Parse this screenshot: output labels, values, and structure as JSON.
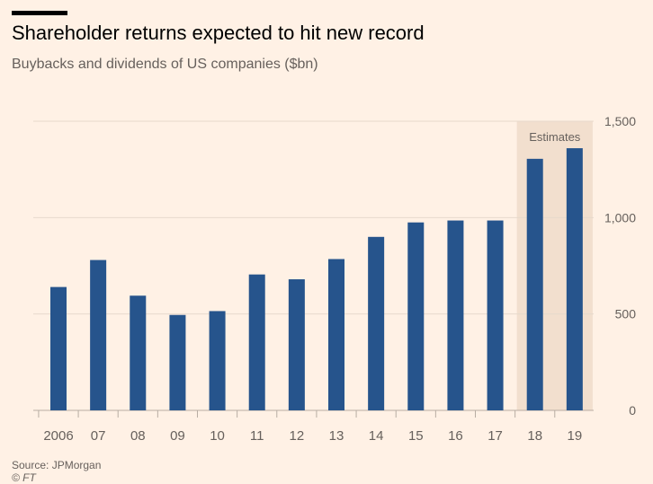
{
  "title": "Shareholder returns expected to hit new record",
  "subtitle": "Buybacks and dividends of US companies ($bn)",
  "source": "Source: JPMorgan",
  "credit": "© FT",
  "chart_data": {
    "type": "bar",
    "categories": [
      "2006",
      "07",
      "08",
      "09",
      "10",
      "11",
      "12",
      "13",
      "14",
      "15",
      "16",
      "17",
      "18",
      "19"
    ],
    "values": [
      640,
      780,
      595,
      495,
      515,
      705,
      680,
      785,
      900,
      975,
      985,
      985,
      1305,
      1360
    ],
    "estimate_categories": [
      "18",
      "19"
    ],
    "annotation": "Estimates",
    "ylim": [
      0,
      1500
    ],
    "yticks": [
      0,
      500,
      1000,
      1500
    ],
    "ytick_labels": [
      "0",
      "500",
      "1,000",
      "1,500"
    ],
    "grid": true,
    "bar_color": "#26548c",
    "estimate_band_color": "#f2dfce",
    "background_color": "#fff1e5",
    "gridline_color": "#e7d9cc"
  }
}
